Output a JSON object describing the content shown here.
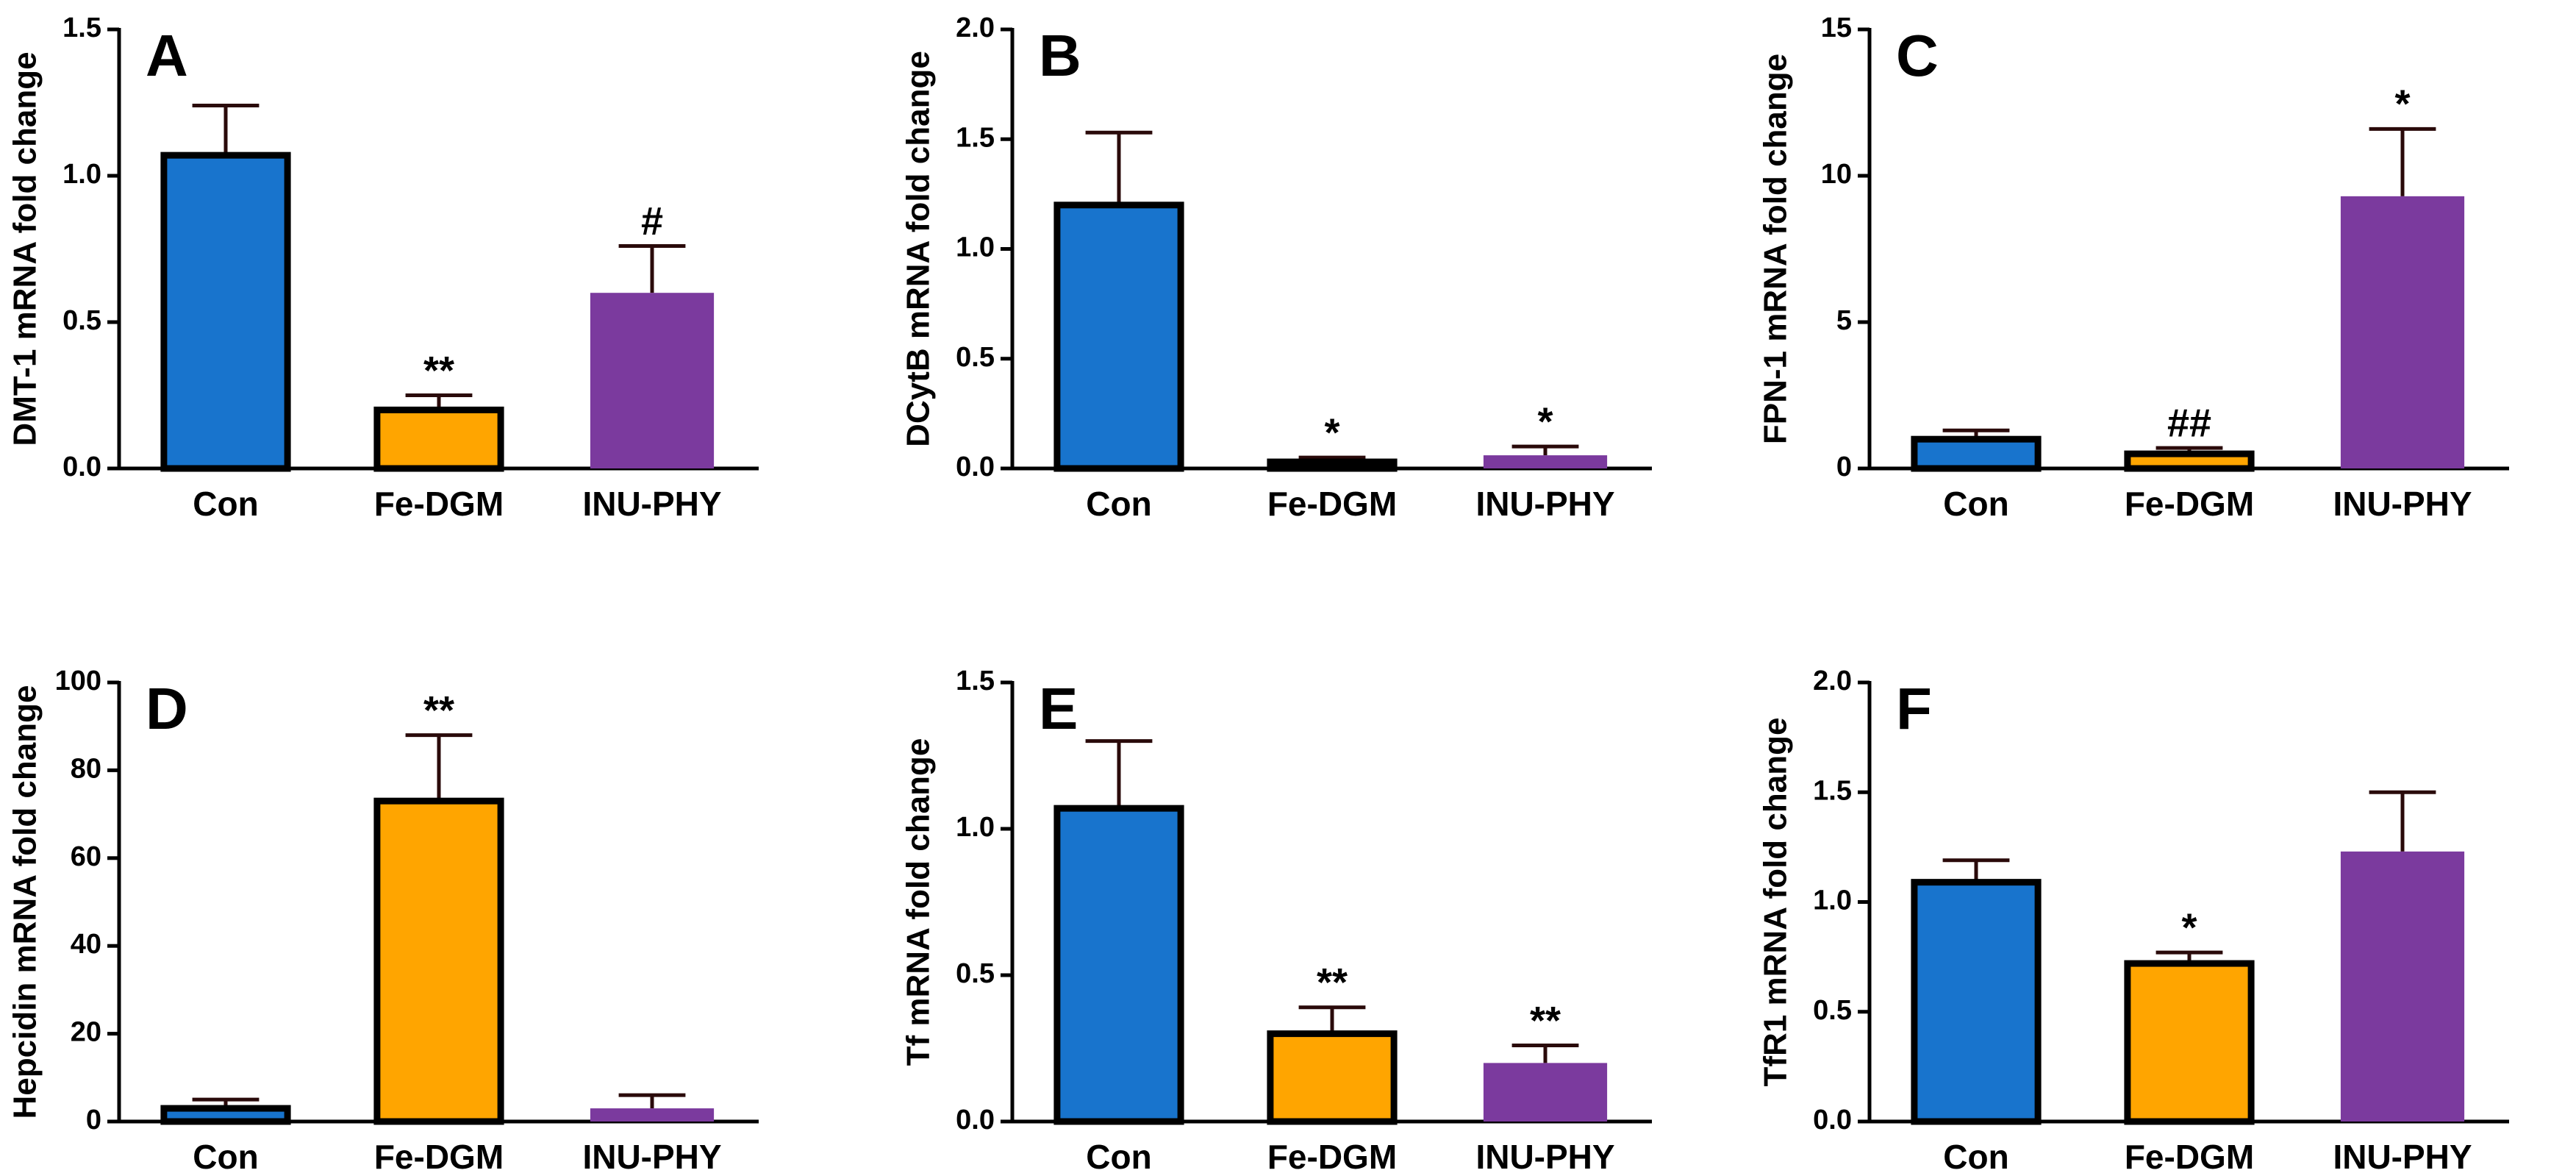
{
  "chart_data": [
    {
      "type": "bar",
      "panel": "A",
      "ylabel": "DMT-1 mRNA fold change",
      "categories": [
        "Con",
        "Fe-DGM",
        "INU-PHY"
      ],
      "values": [
        1.07,
        0.2,
        0.6
      ],
      "errors": [
        0.17,
        0.05,
        0.16
      ],
      "annotations": [
        null,
        "**",
        "#"
      ],
      "colors": [
        "#1874cd",
        "#ffa500",
        "#7b3a9e"
      ],
      "edgecolors": [
        "#000000",
        "#000000",
        null
      ],
      "ylim": [
        0,
        1.5
      ],
      "yticks": [
        {
          "value": 0,
          "label": "0.0"
        },
        0.5,
        {
          "value": 1,
          "label": "1.0"
        },
        1.5
      ]
    },
    {
      "type": "bar",
      "panel": "B",
      "ylabel": "DCytB mRNA fold change",
      "categories": [
        "Con",
        "Fe-DGM",
        "INU-PHY"
      ],
      "values": [
        1.2,
        0.03,
        0.06
      ],
      "errors": [
        0.33,
        0.02,
        0.04
      ],
      "annotations": [
        null,
        "*",
        "*"
      ],
      "colors": [
        "#1874cd",
        "#ffa500",
        "#7b3a9e"
      ],
      "edgecolors": [
        "#000000",
        "#000000",
        null
      ],
      "ylim": [
        0,
        2
      ],
      "yticks": [
        {
          "value": 0,
          "label": "0.0"
        },
        0.5,
        {
          "value": 1,
          "label": "1.0"
        },
        1.5,
        {
          "value": 2,
          "label": "2.0"
        }
      ]
    },
    {
      "type": "bar",
      "panel": "C",
      "ylabel": "FPN-1 mRNA fold change",
      "categories": [
        "Con",
        "Fe-DGM",
        "INU-PHY"
      ],
      "values": [
        1.0,
        0.5,
        9.3
      ],
      "errors": [
        0.3,
        0.2,
        2.3
      ],
      "annotations": [
        null,
        "##",
        "*"
      ],
      "colors": [
        "#1874cd",
        "#ffa500",
        "#7b3a9e"
      ],
      "edgecolors": [
        "#000000",
        "#000000",
        null
      ],
      "ylim": [
        0,
        15
      ],
      "yticks": [
        0,
        5,
        10,
        15
      ]
    },
    {
      "type": "bar",
      "panel": "D",
      "ylabel": "Hepcidin mRNA fold change",
      "categories": [
        "Con",
        "Fe-DGM",
        "INU-PHY"
      ],
      "values": [
        3,
        73,
        3
      ],
      "errors": [
        2,
        15,
        3
      ],
      "annotations": [
        null,
        "**",
        null
      ],
      "colors": [
        "#1874cd",
        "#ffa500",
        "#7b3a9e"
      ],
      "edgecolors": [
        "#000000",
        "#000000",
        null
      ],
      "ylim": [
        0,
        100
      ],
      "yticks": [
        0,
        20,
        40,
        60,
        80,
        100
      ]
    },
    {
      "type": "bar",
      "panel": "E",
      "ylabel": "Tf mRNA fold change",
      "categories": [
        "Con",
        "Fe-DGM",
        "INU-PHY"
      ],
      "values": [
        1.07,
        0.3,
        0.2
      ],
      "errors": [
        0.23,
        0.09,
        0.06
      ],
      "annotations": [
        null,
        "**",
        "**"
      ],
      "colors": [
        "#1874cd",
        "#ffa500",
        "#7b3a9e"
      ],
      "edgecolors": [
        "#000000",
        "#000000",
        null
      ],
      "ylim": [
        0,
        1.5
      ],
      "yticks": [
        {
          "value": 0,
          "label": "0.0"
        },
        0.5,
        {
          "value": 1,
          "label": "1.0"
        },
        1.5
      ]
    },
    {
      "type": "bar",
      "panel": "F",
      "ylabel": "TfR1 mRNA fold change",
      "categories": [
        "Con",
        "Fe-DGM",
        "INU-PHY"
      ],
      "values": [
        1.09,
        0.72,
        1.23
      ],
      "errors": [
        0.1,
        0.05,
        0.27
      ],
      "annotations": [
        null,
        "*",
        null
      ],
      "colors": [
        "#1874cd",
        "#ffa500",
        "#7b3a9e"
      ],
      "edgecolors": [
        "#000000",
        "#000000",
        null
      ],
      "ylim": [
        0,
        2
      ],
      "yticks": [
        {
          "value": 0,
          "label": "0.0"
        },
        0.5,
        {
          "value": 1,
          "label": "1.0"
        },
        1.5,
        {
          "value": 2,
          "label": "2.0"
        }
      ]
    }
  ]
}
